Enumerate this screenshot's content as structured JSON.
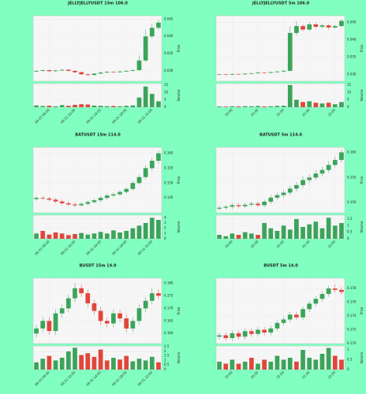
{
  "chart_data": [
    {
      "type": "candlestick",
      "title": "JELLYJELLYUSDT 15m 106.0",
      "ylabel": "Price",
      "y2label": "Volume",
      "up_color": "#3aa55a",
      "down_color": "#e0463c",
      "grid": true,
      "categories": [
        null,
        null,
        "06-21 06:00",
        null,
        null,
        null,
        "06-21 10:00",
        null,
        null,
        null,
        "06-21 14:00",
        null,
        null,
        null,
        "06-21 18:00",
        null,
        null,
        null,
        "06-21 22:00",
        null
      ],
      "open": [
        0.0298,
        0.03,
        0.0302,
        0.0299,
        0.0301,
        0.0303,
        0.03,
        0.0296,
        0.029,
        0.0288,
        0.0292,
        0.0295,
        0.0297,
        0.0296,
        0.0298,
        0.03,
        0.0302,
        0.033,
        0.04,
        0.0425
      ],
      "high": [
        0.0302,
        0.0304,
        0.0303,
        0.0303,
        0.0306,
        0.0305,
        0.0301,
        0.0298,
        0.0292,
        0.0294,
        0.0297,
        0.0299,
        0.0299,
        0.03,
        0.0302,
        0.0305,
        0.0345,
        0.042,
        0.0438,
        0.0448
      ],
      "low": [
        0.0296,
        0.0298,
        0.0297,
        0.0297,
        0.0299,
        0.0298,
        0.0294,
        0.0288,
        0.0284,
        0.0286,
        0.029,
        0.0293,
        0.0294,
        0.0295,
        0.0297,
        0.0299,
        0.03,
        0.0325,
        0.0395,
        0.0418
      ],
      "close": [
        0.03,
        0.0302,
        0.0299,
        0.0301,
        0.0303,
        0.03,
        0.0296,
        0.029,
        0.0288,
        0.0292,
        0.0295,
        0.0297,
        0.0296,
        0.0298,
        0.03,
        0.0302,
        0.033,
        0.04,
        0.0425,
        0.044
      ],
      "volume": [
        1.2,
        0.8,
        1.0,
        0.6,
        1.4,
        0.9,
        1.6,
        2.0,
        1.8,
        1.1,
        0.9,
        0.7,
        0.8,
        0.6,
        0.9,
        1.2,
        6.5,
        14.0,
        9.0,
        4.0
      ],
      "ylim": [
        0.027,
        0.046
      ],
      "yticks": [
        {
          "value": 0.03,
          "label": "0.030"
        },
        {
          "value": 0.035,
          "label": "0.035"
        },
        {
          "value": 0.04,
          "label": "0.040"
        },
        {
          "value": 0.045,
          "label": "0.045"
        }
      ],
      "y2lim": [
        0,
        16
      ],
      "y2ticks": [
        0,
        5,
        10,
        15
      ]
    },
    {
      "type": "candlestick",
      "title": "JELLYJELLYUSDT 5m 106.0",
      "ylabel": "Price",
      "y2label": "Volume",
      "up_color": "#3aa55a",
      "down_color": "#e0463c",
      "grid": true,
      "categories": [
        null,
        null,
        "20:00",
        null,
        null,
        null,
        "20:30",
        null,
        null,
        null,
        "21:00",
        null,
        null,
        null,
        "21:30",
        null,
        null,
        null,
        "22:00",
        null
      ],
      "open": [
        0.0299,
        0.03,
        0.0299,
        0.0301,
        0.03,
        0.0302,
        0.0303,
        0.0305,
        0.0304,
        0.0306,
        0.0308,
        0.031,
        0.042,
        0.044,
        0.043,
        0.0445,
        0.0438,
        0.0442,
        0.0436,
        0.044
      ],
      "high": [
        0.0301,
        0.0301,
        0.0302,
        0.0302,
        0.0303,
        0.0305,
        0.0307,
        0.0306,
        0.0308,
        0.031,
        0.0313,
        0.044,
        0.0455,
        0.0446,
        0.0452,
        0.045,
        0.0448,
        0.0446,
        0.0444,
        0.046
      ],
      "low": [
        0.0297,
        0.0297,
        0.0298,
        0.0298,
        0.0299,
        0.03,
        0.0302,
        0.0302,
        0.0303,
        0.0305,
        0.0306,
        0.0308,
        0.0412,
        0.0425,
        0.0426,
        0.0432,
        0.0433,
        0.043,
        0.0432,
        0.0438
      ],
      "close": [
        0.03,
        0.0299,
        0.0301,
        0.03,
        0.0302,
        0.0303,
        0.0305,
        0.0304,
        0.0306,
        0.0308,
        0.031,
        0.042,
        0.044,
        0.043,
        0.0445,
        0.0438,
        0.0442,
        0.0436,
        0.044,
        0.0455
      ],
      "volume": [
        0.5,
        0.4,
        0.6,
        0.5,
        0.7,
        0.6,
        0.8,
        0.5,
        0.6,
        0.9,
        1.0,
        15.0,
        5.0,
        3.5,
        4.0,
        3.0,
        2.5,
        3.0,
        2.0,
        3.5
      ],
      "ylim": [
        0.028,
        0.047
      ],
      "yticks": [
        {
          "value": 0.03,
          "label": "0.030"
        },
        {
          "value": 0.035,
          "label": "0.035"
        },
        {
          "value": 0.04,
          "label": "0.040"
        },
        {
          "value": 0.045,
          "label": "0.045"
        }
      ],
      "y2lim": [
        0,
        16
      ],
      "y2ticks": [
        0,
        5,
        10,
        15
      ]
    },
    {
      "type": "candlestick",
      "title": "BATUSDT 15m 114.0",
      "ylabel": "Price",
      "y2label": "Volume",
      "up_color": "#3aa55a",
      "down_color": "#e0463c",
      "grid": true,
      "categories": [
        null,
        null,
        "06-21 06:00",
        null,
        null,
        null,
        "06-21 10:00",
        null,
        null,
        null,
        "06-21 14:00",
        null,
        null,
        null,
        "06-21 18:00",
        null,
        null,
        null,
        "06-21 22:00",
        null
      ],
      "open": [
        0.1446,
        0.145,
        0.1448,
        0.1444,
        0.1438,
        0.1432,
        0.1428,
        0.1425,
        0.143,
        0.1436,
        0.1442,
        0.145,
        0.1458,
        0.1462,
        0.147,
        0.148,
        0.15,
        0.152,
        0.155,
        0.1575
      ],
      "high": [
        0.1456,
        0.1456,
        0.1454,
        0.145,
        0.1444,
        0.1438,
        0.1434,
        0.1436,
        0.1442,
        0.1448,
        0.1456,
        0.1464,
        0.1468,
        0.1476,
        0.1486,
        0.1508,
        0.1528,
        0.156,
        0.1585,
        0.161
      ],
      "low": [
        0.144,
        0.1442,
        0.1438,
        0.1432,
        0.1426,
        0.1422,
        0.1419,
        0.1419,
        0.1424,
        0.143,
        0.1436,
        0.1444,
        0.1452,
        0.1456,
        0.1464,
        0.1474,
        0.1494,
        0.1512,
        0.1542,
        0.1566
      ],
      "close": [
        0.145,
        0.1448,
        0.1444,
        0.1438,
        0.1432,
        0.1428,
        0.1425,
        0.143,
        0.1436,
        0.1442,
        0.145,
        0.1458,
        0.1462,
        0.147,
        0.148,
        0.15,
        0.152,
        0.155,
        0.1575,
        0.16
      ],
      "volume": [
        1.0,
        1.5,
        0.8,
        1.2,
        1.0,
        0.7,
        0.9,
        1.1,
        0.8,
        1.0,
        1.3,
        1.0,
        1.6,
        1.2,
        1.5,
        2.0,
        2.5,
        3.0,
        4.0,
        3.6
      ],
      "ylim": [
        0.14,
        0.162
      ],
      "yticks": [
        {
          "value": 0.145,
          "label": "0.145"
        },
        {
          "value": 0.15,
          "label": "0.150"
        },
        {
          "value": 0.155,
          "label": "0.155"
        },
        {
          "value": 0.16,
          "label": "0.160"
        }
      ],
      "y2lim": [
        0,
        4.5
      ],
      "y2ticks": [
        0,
        1,
        2,
        3,
        4
      ]
    },
    {
      "type": "candlestick",
      "title": "BATUSDT 5m 114.0",
      "ylabel": "Price",
      "y2label": "Volume",
      "up_color": "#3aa55a",
      "down_color": "#e0463c",
      "grid": true,
      "categories": [
        null,
        null,
        "20:00",
        null,
        null,
        null,
        "20:30",
        null,
        null,
        null,
        "21:00",
        null,
        null,
        null,
        "21:30",
        null,
        null,
        null,
        "22:00",
        null
      ],
      "open": [
        0.1488,
        0.149,
        0.1492,
        0.1495,
        0.1493,
        0.1496,
        0.1498,
        0.1495,
        0.1502,
        0.151,
        0.1515,
        0.152,
        0.1528,
        0.1535,
        0.1545,
        0.155,
        0.1558,
        0.1565,
        0.1575,
        0.1585
      ],
      "high": [
        0.1494,
        0.1496,
        0.1499,
        0.1499,
        0.15,
        0.1502,
        0.1502,
        0.1506,
        0.1516,
        0.152,
        0.1526,
        0.1534,
        0.1541,
        0.1552,
        0.1556,
        0.1565,
        0.1572,
        0.1582,
        0.1592,
        0.1606
      ],
      "low": [
        0.1484,
        0.1486,
        0.1488,
        0.1489,
        0.1489,
        0.1492,
        0.1491,
        0.1491,
        0.1498,
        0.1505,
        0.151,
        0.1515,
        0.1522,
        0.153,
        0.1539,
        0.1545,
        0.1552,
        0.156,
        0.157,
        0.158
      ],
      "close": [
        0.149,
        0.1492,
        0.1495,
        0.1493,
        0.1496,
        0.1498,
        0.1495,
        0.1502,
        0.151,
        0.1515,
        0.152,
        0.1528,
        0.1535,
        0.1545,
        0.155,
        0.1558,
        0.1565,
        0.1575,
        0.1585,
        0.16
      ],
      "volume": [
        0.3,
        0.2,
        0.4,
        0.3,
        0.5,
        0.4,
        0.3,
        1.2,
        0.8,
        0.6,
        1.0,
        0.7,
        1.5,
        0.9,
        1.1,
        1.3,
        0.8,
        1.6,
        1.0,
        1.2
      ],
      "ylim": [
        0.148,
        0.161
      ],
      "yticks": [
        {
          "value": 0.15,
          "label": "0.150"
        },
        {
          "value": 0.155,
          "label": "0.155"
        },
        {
          "value": 0.16,
          "label": "0.160"
        }
      ],
      "y2lim": [
        0,
        1.8
      ],
      "y2ticks": [
        0,
        0.5,
        1,
        1.5
      ]
    },
    {
      "type": "candlestick",
      "title": "BUSDT 15m 14.0",
      "ylabel": "Price",
      "y2label": "Volume",
      "up_color": "#3aa55a",
      "down_color": "#e0463c",
      "grid": true,
      "categories": [
        null,
        null,
        "06-21 06:00",
        null,
        null,
        null,
        "06-21 10:00",
        null,
        null,
        null,
        "06-21 14:00",
        null,
        null,
        null,
        "06-21 18:00",
        null,
        null,
        null,
        "06-21 22:00",
        null
      ],
      "open": [
        0.16,
        0.162,
        0.165,
        0.161,
        0.168,
        0.17,
        0.174,
        0.178,
        0.176,
        0.172,
        0.169,
        0.165,
        0.164,
        0.168,
        0.166,
        0.162,
        0.165,
        0.17,
        0.173,
        0.176
      ],
      "high": [
        0.1635,
        0.1665,
        0.1665,
        0.1695,
        0.1715,
        0.1755,
        0.18,
        0.1795,
        0.1775,
        0.1735,
        0.1705,
        0.1665,
        0.1695,
        0.1695,
        0.1675,
        0.1665,
        0.1715,
        0.1745,
        0.178,
        0.1775
      ],
      "low": [
        0.1585,
        0.1605,
        0.1595,
        0.1595,
        0.1665,
        0.1685,
        0.1725,
        0.1745,
        0.1705,
        0.1675,
        0.1635,
        0.1625,
        0.1625,
        0.1645,
        0.1605,
        0.1605,
        0.1635,
        0.1685,
        0.1715,
        0.1735
      ],
      "close": [
        0.162,
        0.165,
        0.161,
        0.168,
        0.17,
        0.174,
        0.178,
        0.176,
        0.172,
        0.169,
        0.165,
        0.164,
        0.168,
        0.166,
        0.162,
        0.165,
        0.17,
        0.173,
        0.176,
        0.175
      ],
      "volume": [
        0.8,
        1.2,
        1.5,
        1.0,
        1.3,
        2.0,
        2.4,
        1.6,
        1.8,
        1.4,
        2.2,
        1.0,
        1.3,
        1.1,
        1.5,
        0.9,
        1.2,
        1.0,
        1.4,
        0.8
      ],
      "ylim": [
        0.156,
        0.182
      ],
      "yticks": [
        {
          "value": 0.16,
          "label": "0.160"
        },
        {
          "value": 0.165,
          "label": "0.165"
        },
        {
          "value": 0.17,
          "label": "0.170"
        },
        {
          "value": 0.175,
          "label": "0.175"
        },
        {
          "value": 0.18,
          "label": "0.180"
        }
      ],
      "y2lim": [
        0,
        2.6
      ],
      "y2ticks": [
        0,
        0.5,
        1,
        1.5,
        2,
        2.5
      ]
    },
    {
      "type": "candlestick",
      "title": "BUSDT 5m 14.0",
      "ylabel": "Price",
      "y2label": "Volume",
      "up_color": "#3aa55a",
      "down_color": "#e0463c",
      "grid": true,
      "categories": [
        null,
        null,
        "20:00",
        null,
        null,
        null,
        "20:30",
        null,
        null,
        null,
        "21:00",
        null,
        null,
        null,
        "21:30",
        null,
        null,
        null,
        "22:00",
        null
      ],
      "open": [
        0.171,
        0.1712,
        0.1708,
        0.1715,
        0.171,
        0.1718,
        0.1714,
        0.172,
        0.1716,
        0.1722,
        0.173,
        0.1735,
        0.1742,
        0.1738,
        0.175,
        0.1758,
        0.1765,
        0.1772,
        0.178,
        0.1778
      ],
      "high": [
        0.1716,
        0.1716,
        0.1719,
        0.1719,
        0.1722,
        0.1722,
        0.1724,
        0.1724,
        0.1726,
        0.1734,
        0.1739,
        0.1746,
        0.1746,
        0.1754,
        0.1762,
        0.1769,
        0.1776,
        0.1784,
        0.1786,
        0.1782
      ],
      "low": [
        0.1706,
        0.1704,
        0.1704,
        0.1706,
        0.1706,
        0.171,
        0.171,
        0.1712,
        0.1712,
        0.1718,
        0.1726,
        0.1731,
        0.1734,
        0.1734,
        0.1746,
        0.1754,
        0.1761,
        0.1768,
        0.1774,
        0.1771
      ],
      "close": [
        0.1712,
        0.1708,
        0.1715,
        0.171,
        0.1718,
        0.1714,
        0.172,
        0.1716,
        0.1722,
        0.173,
        0.1735,
        0.1742,
        0.1738,
        0.175,
        0.1758,
        0.1765,
        0.1772,
        0.178,
        0.1778,
        0.1775
      ],
      "volume": [
        0.4,
        0.3,
        0.5,
        0.3,
        0.4,
        0.6,
        0.3,
        0.5,
        0.4,
        0.7,
        0.5,
        0.6,
        0.4,
        1.0,
        0.6,
        0.5,
        0.8,
        1.1,
        0.7,
        0.5
      ],
      "ylim": [
        0.17,
        0.1795
      ],
      "yticks": [
        {
          "value": 0.17,
          "label": "0.170"
        },
        {
          "value": 0.172,
          "label": "0.172"
        },
        {
          "value": 0.174,
          "label": "0.174"
        },
        {
          "value": 0.176,
          "label": "0.176"
        },
        {
          "value": 0.178,
          "label": "0.178"
        }
      ],
      "y2lim": [
        0,
        1.2
      ],
      "y2ticks": [
        0,
        0.5,
        1
      ]
    }
  ]
}
